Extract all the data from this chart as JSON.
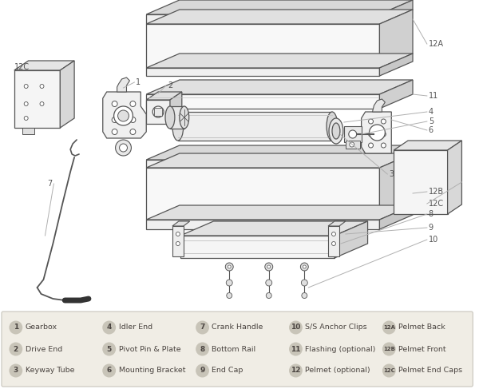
{
  "bg_color": "#ffffff",
  "line_color": "#555555",
  "label_line_color": "#b0b0b0",
  "legend_bg": "#f0ede5",
  "legend_border": "#c8c5bc",
  "circle_color": "#c8c4b8",
  "figsize": [
    6.0,
    4.87
  ],
  "dpi": 100,
  "legend_items": [
    {
      "num": "1",
      "label": "Gearbox"
    },
    {
      "num": "2",
      "label": "Drive End"
    },
    {
      "num": "3",
      "label": "Keyway Tube"
    },
    {
      "num": "4",
      "label": "Idler End"
    },
    {
      "num": "5",
      "label": "Pivot Pin & Plate"
    },
    {
      "num": "6",
      "label": "Mounting Bracket"
    },
    {
      "num": "7",
      "label": "Crank Handle"
    },
    {
      "num": "8",
      "label": "Bottom Rail"
    },
    {
      "num": "9",
      "label": "End Cap"
    },
    {
      "num": "10",
      "label": "S/S Anchor Clips"
    },
    {
      "num": "11",
      "label": "Flashing (optional)"
    },
    {
      "num": "12",
      "label": "Pelmet (optional)"
    },
    {
      "num": "12A",
      "label": "Pelmet Back"
    },
    {
      "num": "12B",
      "label": "Pelmet Front"
    },
    {
      "num": "12C",
      "label": "Pelmet End Caps"
    }
  ]
}
